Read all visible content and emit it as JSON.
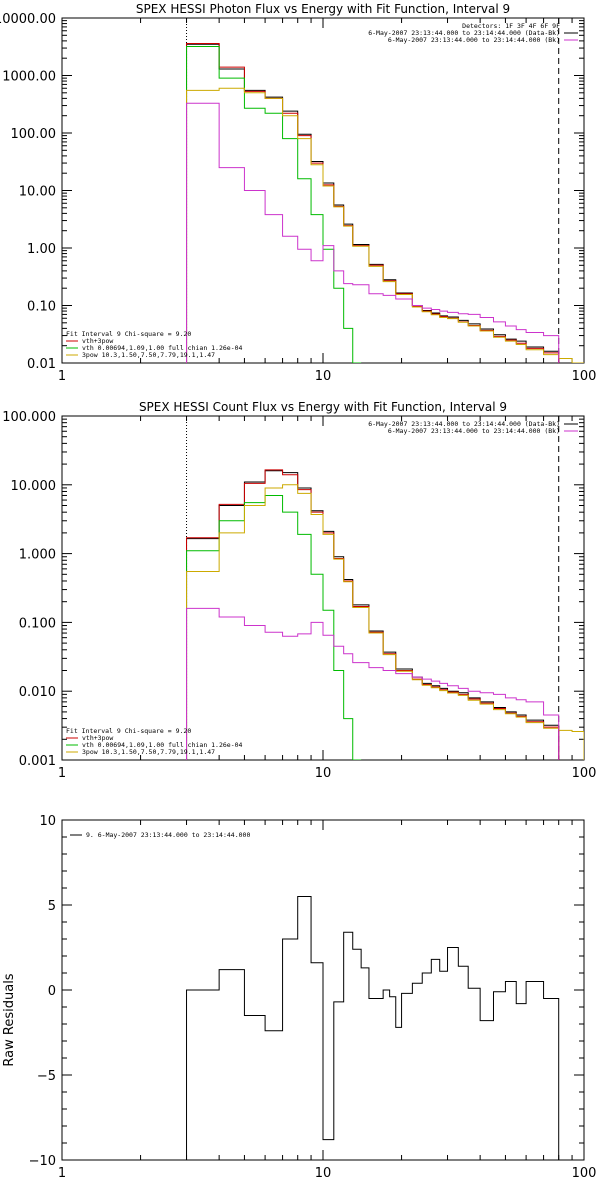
{
  "chart_data": [
    {
      "type": "line",
      "title": "SPEX HESSI Photon Flux vs Energy with Fit Function, Interval 9",
      "xlim": [
        1,
        100
      ],
      "ylim": [
        0.01,
        10000
      ],
      "xscale": "log",
      "yscale": "log",
      "x_ticks": [
        "1",
        "10",
        "100"
      ],
      "y_ticks": [
        {
          "v": 10000,
          "label": "10000.00"
        },
        {
          "v": 1000,
          "label": "1000.00"
        },
        {
          "v": 100,
          "label": "100.00"
        },
        {
          "v": 10,
          "label": "10.00"
        },
        {
          "v": 1,
          "label": "1.00"
        },
        {
          "v": 0.1,
          "label": "0.10"
        },
        {
          "v": 0.01,
          "label": "0.01"
        }
      ],
      "ylabel": "",
      "vlines": [
        {
          "x": 3,
          "style": "dotted"
        },
        {
          "x": 80,
          "style": "dashed"
        }
      ],
      "legend_top": [
        {
          "text": "Detectors: 1F 3F 4F 6F 9F",
          "color": "#000000"
        },
        {
          "text": "6-May-2007 23:13:44.000 to 23:14:44.000 (Data-Bk)",
          "color": "#000000"
        },
        {
          "text": "6-May-2007 23:13:44.000 to 23:14:44.000 (Bk)",
          "color": "#cc33cc"
        }
      ],
      "legend_bottom": [
        {
          "text": "Fit Interval 9   Chi-square = 9.20",
          "color": "#000000"
        },
        {
          "text": "vth+3pow",
          "color": "#cc0000"
        },
        {
          "text": "vth 0.00694,1.09,1.00  full chian 1.26e-04",
          "color": "#00bb00"
        },
        {
          "text": "3pow 10.3,1.50,7.50,7.79,19.1,1.47",
          "color": "#ccaa00"
        }
      ],
      "edges": [
        3.0,
        3.5,
        4.0,
        4.5,
        5.0,
        5.5,
        6.0,
        6.5,
        7.0,
        7.5,
        8.0,
        8.5,
        9.0,
        9.5,
        10.0,
        11.0,
        12.0,
        13.0,
        14.0,
        15.0,
        16.0,
        17.0,
        18.0,
        19.0,
        20.0,
        22.0,
        24.0,
        26.0,
        28.0,
        30.0,
        33.0,
        36.0,
        40.0,
        45.0,
        50.0,
        55.0,
        60.0,
        70.0,
        80.0,
        90.0,
        100.0
      ],
      "series": [
        {
          "role": "data-bk",
          "color": "#000000",
          "values": [
            3500,
            3500,
            1300,
            1300,
            550,
            550,
            420,
            420,
            240,
            240,
            95,
            95,
            32,
            32,
            13.5,
            5.6,
            2.6,
            1.15,
            1.15,
            0.52,
            0.52,
            0.28,
            0.28,
            0.165,
            0.165,
            0.1,
            0.082,
            0.074,
            0.066,
            0.063,
            0.055,
            0.048,
            0.039,
            0.031,
            0.026,
            0.024,
            0.019,
            0.016
          ]
        },
        {
          "role": "vth+3pow",
          "color": "#cc0000",
          "values": [
            3600,
            3600,
            1400,
            1400,
            530,
            530,
            400,
            400,
            220,
            220,
            90,
            90,
            30,
            30,
            12.5,
            5.3,
            2.45,
            1.1,
            1.1,
            0.5,
            0.5,
            0.27,
            0.27,
            0.16,
            0.16,
            0.097,
            0.08,
            0.071,
            0.064,
            0.06,
            0.052,
            0.045,
            0.037,
            0.029,
            0.025,
            0.022,
            0.018,
            0.015
          ]
        },
        {
          "role": "vth",
          "color": "#00bb00",
          "values": [
            3200,
            3200,
            900,
            900,
            270,
            270,
            220,
            220,
            80,
            80,
            16,
            16,
            3.8,
            3.8,
            0.95,
            0.2,
            0.04,
            0.01
          ]
        },
        {
          "role": "3pow",
          "color": "#ccaa00",
          "values": [
            550,
            550,
            600,
            600,
            500,
            500,
            400,
            400,
            200,
            200,
            80,
            80,
            28,
            28,
            12,
            5.2,
            2.4,
            1.07,
            1.07,
            0.48,
            0.48,
            0.26,
            0.26,
            0.155,
            0.155,
            0.094,
            0.078,
            0.069,
            0.062,
            0.059,
            0.051,
            0.044,
            0.036,
            0.028,
            0.024,
            0.021,
            0.017,
            0.014,
            0.012,
            0.01
          ]
        },
        {
          "role": "bk",
          "color": "#cc33cc",
          "values": [
            330,
            330,
            25,
            25,
            10,
            10,
            3.8,
            3.8,
            1.6,
            1.6,
            0.95,
            0.95,
            0.6,
            0.6,
            1.1,
            0.4,
            0.24,
            0.23,
            0.23,
            0.16,
            0.16,
            0.15,
            0.15,
            0.13,
            0.13,
            0.1,
            0.09,
            0.085,
            0.08,
            0.076,
            0.072,
            0.07,
            0.062,
            0.052,
            0.044,
            0.038,
            0.034,
            0.03
          ]
        }
      ]
    },
    {
      "type": "line",
      "title": "SPEX HESSI Count Flux vs Energy with Fit Function, Interval 9",
      "xlim": [
        1,
        100
      ],
      "ylim": [
        0.001,
        100
      ],
      "xscale": "log",
      "yscale": "log",
      "x_ticks": [
        "1",
        "10",
        "100"
      ],
      "y_ticks": [
        {
          "v": 100,
          "label": "100.000"
        },
        {
          "v": 10,
          "label": "10.000"
        },
        {
          "v": 1,
          "label": "1.000"
        },
        {
          "v": 0.1,
          "label": "0.100"
        },
        {
          "v": 0.01,
          "label": "0.010"
        },
        {
          "v": 0.001,
          "label": "0.001"
        }
      ],
      "ylabel": "",
      "vlines": [
        {
          "x": 3,
          "style": "dotted"
        },
        {
          "x": 80,
          "style": "dashed"
        }
      ],
      "legend_top": [
        {
          "text": "6-May-2007 23:13:44.000 to 23:14:44.000 (Data-Bk)",
          "color": "#000000"
        },
        {
          "text": "6-May-2007 23:13:44.000 to 23:14:44.000 (Bk)",
          "color": "#cc33cc"
        }
      ],
      "legend_bottom": [
        {
          "text": "Fit Interval 9   Chi-square = 9.20",
          "color": "#000000"
        },
        {
          "text": "vth+3pow",
          "color": "#cc0000"
        },
        {
          "text": "vth 0.00694,1.09,1.00  full chian 1.26e-04",
          "color": "#00bb00"
        },
        {
          "text": "3pow 10.3,1.50,7.50,7.79,19.1,1.47",
          "color": "#ccaa00"
        }
      ],
      "edges": [
        3.0,
        3.5,
        4.0,
        4.5,
        5.0,
        5.5,
        6.0,
        6.5,
        7.0,
        7.5,
        8.0,
        8.5,
        9.0,
        9.5,
        10.0,
        11.0,
        12.0,
        13.0,
        14.0,
        15.0,
        16.0,
        17.0,
        18.0,
        19.0,
        20.0,
        22.0,
        24.0,
        26.0,
        28.0,
        30.0,
        33.0,
        36.0,
        40.0,
        45.0,
        50.0,
        55.0,
        60.0,
        70.0,
        80.0,
        90.0,
        100.0
      ],
      "series": [
        {
          "role": "data-bk",
          "color": "#000000",
          "values": [
            1.65,
            1.65,
            5.0,
            5.0,
            11.0,
            11.0,
            16.0,
            16.0,
            15.0,
            15.0,
            9.0,
            9.0,
            4.2,
            4.2,
            2.1,
            0.9,
            0.42,
            0.18,
            0.18,
            0.075,
            0.075,
            0.037,
            0.037,
            0.021,
            0.021,
            0.016,
            0.013,
            0.012,
            0.011,
            0.01,
            0.0095,
            0.008,
            0.007,
            0.0058,
            0.005,
            0.0045,
            0.0038,
            0.0032
          ]
        },
        {
          "role": "vth+3pow",
          "color": "#cc0000",
          "values": [
            1.7,
            1.7,
            5.2,
            5.2,
            10.5,
            10.5,
            16.5,
            16.5,
            14.0,
            14.0,
            8.5,
            8.5,
            4.0,
            4.0,
            2.0,
            0.85,
            0.4,
            0.17,
            0.17,
            0.072,
            0.072,
            0.035,
            0.035,
            0.02,
            0.02,
            0.015,
            0.0125,
            0.0115,
            0.0105,
            0.0097,
            0.009,
            0.0077,
            0.0067,
            0.0056,
            0.0048,
            0.0043,
            0.0036,
            0.003
          ]
        },
        {
          "role": "vth",
          "color": "#00bb00",
          "values": [
            1.1,
            1.1,
            3.0,
            3.0,
            5.5,
            5.5,
            7.0,
            7.0,
            4.0,
            4.0,
            1.9,
            1.9,
            0.5,
            0.5,
            0.15,
            0.02,
            0.004,
            0.001
          ]
        },
        {
          "role": "3pow",
          "color": "#ccaa00",
          "values": [
            0.55,
            0.55,
            2.0,
            2.0,
            5.0,
            5.0,
            9.0,
            9.0,
            10.0,
            10.0,
            7.5,
            7.5,
            3.7,
            3.7,
            1.9,
            0.83,
            0.39,
            0.165,
            0.165,
            0.07,
            0.07,
            0.034,
            0.034,
            0.0195,
            0.0195,
            0.0147,
            0.0122,
            0.0112,
            0.0102,
            0.0094,
            0.0087,
            0.0074,
            0.0065,
            0.0054,
            0.0047,
            0.0042,
            0.0035,
            0.0029,
            0.0027,
            0.0026
          ]
        },
        {
          "role": "bk",
          "color": "#cc33cc",
          "values": [
            0.16,
            0.16,
            0.12,
            0.12,
            0.09,
            0.09,
            0.072,
            0.072,
            0.063,
            0.063,
            0.068,
            0.068,
            0.1,
            0.1,
            0.065,
            0.045,
            0.035,
            0.026,
            0.026,
            0.022,
            0.022,
            0.02,
            0.02,
            0.018,
            0.018,
            0.016,
            0.015,
            0.014,
            0.013,
            0.012,
            0.011,
            0.01,
            0.0095,
            0.009,
            0.008,
            0.0075,
            0.007,
            0.0045
          ]
        }
      ]
    },
    {
      "type": "line",
      "title": "",
      "xlim": [
        1,
        100
      ],
      "ylim": [
        -10,
        10
      ],
      "xscale": "log",
      "yscale": "linear",
      "x_ticks": [
        "1",
        "10",
        "100"
      ],
      "y_ticks": [
        {
          "v": 10,
          "label": "10"
        },
        {
          "v": 5,
          "label": "5"
        },
        {
          "v": 0,
          "label": "0"
        },
        {
          "v": -5,
          "label": "−5"
        },
        {
          "v": -10,
          "label": "−10"
        }
      ],
      "ylabel": "Raw Residuals",
      "vlines": [],
      "legend_top": [],
      "legend_bottom": [],
      "legend_left": [
        {
          "text": "9. 6-May-2007 23:13:44.000 to 23:14:44.000",
          "color": "#000000"
        }
      ],
      "edges": [
        3.0,
        3.5,
        4.0,
        4.5,
        5.0,
        5.5,
        6.0,
        6.5,
        7.0,
        7.5,
        8.0,
        8.5,
        9.0,
        9.5,
        10.0,
        11.0,
        12.0,
        13.0,
        14.0,
        15.0,
        16.0,
        17.0,
        18.0,
        19.0,
        20.0,
        22.0,
        24.0,
        26.0,
        28.0,
        30.0,
        33.0,
        36.0,
        40.0,
        45.0,
        50.0,
        55.0,
        60.0,
        70.0,
        80.0
      ],
      "series": [
        {
          "role": "residuals",
          "color": "#000000",
          "values": [
            0.0,
            0.0,
            1.2,
            1.2,
            -1.5,
            -1.5,
            -2.4,
            -2.4,
            3.0,
            3.0,
            5.5,
            5.5,
            1.6,
            1.6,
            -8.8,
            -0.7,
            3.4,
            2.4,
            1.3,
            -0.5,
            -0.5,
            0.0,
            -0.4,
            -2.2,
            -0.2,
            0.4,
            1.0,
            1.8,
            1.1,
            2.5,
            1.4,
            0.1,
            -1.8,
            -0.1,
            0.5,
            -0.8,
            0.5,
            -0.5
          ]
        }
      ]
    }
  ]
}
